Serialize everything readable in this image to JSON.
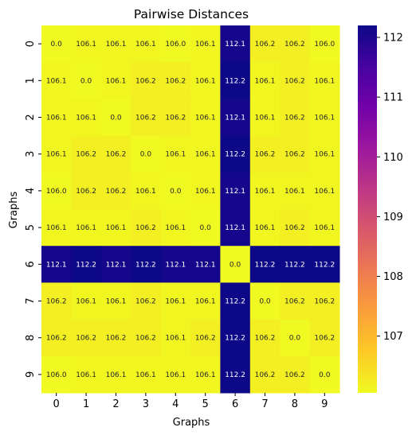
{
  "chart_data": {
    "type": "heatmap",
    "title": "Pairwise Distances",
    "xlabel": "Graphs",
    "ylabel": "Graphs",
    "x_categories": [
      "0",
      "1",
      "2",
      "3",
      "4",
      "5",
      "6",
      "7",
      "8",
      "9"
    ],
    "y_categories": [
      "0",
      "1",
      "2",
      "3",
      "4",
      "5",
      "6",
      "7",
      "8",
      "9"
    ],
    "values": [
      [
        0.0,
        106.1,
        106.1,
        106.1,
        106.0,
        106.1,
        112.1,
        106.2,
        106.2,
        106.0
      ],
      [
        106.1,
        0.0,
        106.1,
        106.2,
        106.2,
        106.1,
        112.2,
        106.1,
        106.2,
        106.1
      ],
      [
        106.1,
        106.1,
        0.0,
        106.2,
        106.2,
        106.1,
        112.1,
        106.1,
        106.2,
        106.1
      ],
      [
        106.1,
        106.2,
        106.2,
        0.0,
        106.1,
        106.1,
        112.2,
        106.2,
        106.2,
        106.1
      ],
      [
        106.0,
        106.2,
        106.2,
        106.1,
        0.0,
        106.1,
        112.1,
        106.1,
        106.1,
        106.1
      ],
      [
        106.1,
        106.1,
        106.1,
        106.2,
        106.1,
        0.0,
        112.1,
        106.1,
        106.2,
        106.1
      ],
      [
        112.1,
        112.2,
        112.1,
        112.2,
        112.1,
        112.1,
        0.0,
        112.2,
        112.2,
        112.2
      ],
      [
        106.2,
        106.1,
        106.1,
        106.2,
        106.1,
        106.1,
        112.2,
        0.0,
        106.2,
        106.2
      ],
      [
        106.2,
        106.2,
        106.2,
        106.2,
        106.1,
        106.2,
        112.2,
        106.2,
        0.0,
        106.2
      ],
      [
        106.0,
        106.1,
        106.1,
        106.1,
        106.1,
        106.1,
        112.2,
        106.2,
        106.2,
        0.0
      ]
    ],
    "colormap": "plasma_r",
    "color_range": [
      106.05,
      112.2
    ],
    "colorbar_ticks": [
      107,
      108,
      109,
      110,
      111,
      112
    ],
    "colorbar_stops": [
      "#f0f921",
      "#fdca26",
      "#fb9f3a",
      "#ed7953",
      "#d8576b",
      "#bd3786",
      "#9c179e",
      "#7201a8",
      "#46039f",
      "#0d0887"
    ],
    "cell_label_light": "#ffffff",
    "cell_label_dark": "#262626"
  }
}
